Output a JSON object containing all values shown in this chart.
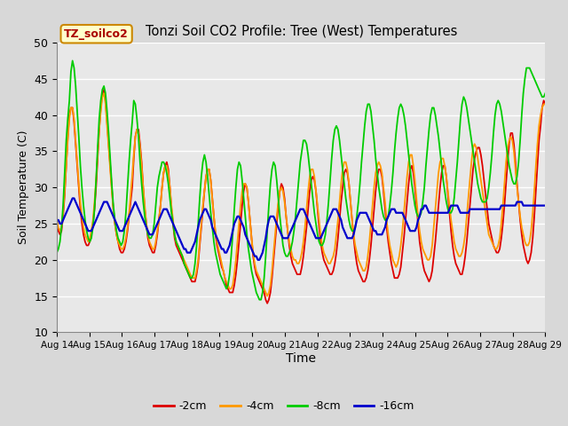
{
  "title": "Tonzi Soil CO2 Profile: Tree (West) Temperatures",
  "xlabel": "Time",
  "ylabel": "Soil Temperature (C)",
  "ylim": [
    10,
    50
  ],
  "yticks": [
    10,
    15,
    20,
    25,
    30,
    35,
    40,
    45,
    50
  ],
  "fig_bg_color": "#d8d8d8",
  "plot_bg_color": "#e8e8e8",
  "grid_color": "white",
  "legend_label": "TZ_soilco2",
  "series_labels": [
    "-2cm",
    "-4cm",
    "-8cm",
    "-16cm"
  ],
  "series_colors": [
    "#dd0000",
    "#ff9900",
    "#00cc00",
    "#0000cc"
  ],
  "series_linewidths": [
    1.3,
    1.3,
    1.3,
    1.6
  ],
  "date_labels": [
    "Aug 14",
    "Aug 15",
    "Aug 16",
    "Aug 17",
    "Aug 18",
    "Aug 19",
    "Aug 20",
    "Aug 21",
    "Aug 22",
    "Aug 23",
    "Aug 24",
    "Aug 25",
    "Aug 26",
    "Aug 27",
    "Aug 28",
    "Aug 29"
  ],
  "depth_2cm": [
    25.0,
    24.0,
    23.5,
    24.0,
    26.0,
    29.0,
    33.0,
    37.0,
    40.0,
    41.0,
    41.0,
    39.0,
    36.0,
    33.0,
    30.0,
    27.0,
    25.0,
    23.5,
    22.5,
    22.0,
    22.0,
    22.5,
    23.5,
    25.0,
    27.0,
    30.0,
    34.0,
    38.0,
    41.0,
    43.0,
    43.5,
    42.0,
    39.0,
    36.0,
    33.0,
    30.0,
    27.0,
    25.0,
    23.5,
    22.5,
    21.5,
    21.0,
    21.0,
    21.5,
    22.5,
    24.0,
    26.0,
    28.0,
    30.0,
    34.0,
    37.0,
    38.0,
    38.0,
    36.0,
    33.5,
    30.0,
    27.0,
    25.0,
    23.0,
    22.0,
    21.5,
    21.0,
    21.0,
    22.0,
    23.5,
    25.5,
    27.5,
    30.0,
    32.0,
    33.0,
    33.5,
    32.5,
    30.0,
    27.0,
    25.0,
    23.0,
    22.0,
    21.5,
    21.0,
    20.5,
    20.0,
    19.5,
    19.0,
    18.5,
    18.0,
    17.5,
    17.0,
    17.0,
    17.0,
    18.0,
    19.5,
    22.0,
    24.5,
    27.0,
    29.5,
    31.5,
    32.5,
    32.5,
    31.0,
    28.5,
    26.0,
    23.5,
    22.0,
    21.0,
    20.0,
    19.0,
    18.5,
    17.5,
    16.5,
    16.0,
    15.5,
    15.5,
    15.5,
    16.5,
    18.0,
    20.0,
    22.5,
    25.0,
    27.5,
    29.5,
    30.5,
    30.0,
    28.0,
    25.5,
    23.0,
    20.5,
    19.0,
    18.0,
    17.5,
    17.0,
    16.5,
    16.0,
    15.5,
    14.5,
    14.0,
    14.5,
    15.5,
    17.5,
    20.0,
    22.5,
    25.0,
    27.5,
    29.5,
    30.5,
    30.0,
    28.5,
    26.0,
    24.0,
    22.0,
    20.5,
    19.5,
    19.0,
    18.5,
    18.0,
    18.0,
    18.0,
    19.0,
    20.5,
    22.5,
    24.5,
    27.0,
    29.5,
    31.0,
    31.5,
    31.0,
    29.5,
    27.0,
    24.5,
    22.5,
    21.0,
    20.0,
    19.5,
    19.0,
    18.5,
    18.0,
    18.0,
    18.5,
    19.5,
    21.0,
    23.0,
    25.5,
    28.0,
    30.0,
    32.0,
    32.5,
    32.0,
    30.5,
    28.0,
    25.5,
    23.0,
    21.0,
    19.5,
    18.5,
    18.0,
    17.5,
    17.0,
    17.0,
    17.5,
    18.5,
    20.0,
    22.0,
    24.5,
    27.0,
    29.5,
    31.5,
    32.5,
    32.5,
    31.5,
    29.5,
    27.0,
    24.5,
    22.5,
    21.0,
    19.5,
    18.5,
    17.5,
    17.5,
    17.5,
    18.0,
    19.0,
    21.0,
    23.0,
    25.5,
    28.0,
    30.5,
    32.5,
    33.0,
    32.0,
    30.0,
    27.5,
    25.0,
    22.5,
    21.0,
    19.5,
    18.5,
    18.0,
    17.5,
    17.0,
    17.5,
    18.5,
    20.5,
    22.5,
    25.0,
    27.5,
    30.0,
    32.0,
    33.0,
    33.0,
    31.5,
    29.0,
    26.5,
    24.0,
    22.0,
    20.5,
    19.5,
    19.0,
    18.5,
    18.0,
    18.0,
    19.0,
    20.5,
    22.5,
    25.0,
    27.5,
    30.0,
    32.5,
    34.0,
    35.0,
    35.5,
    35.5,
    34.5,
    33.0,
    31.0,
    29.0,
    27.0,
    25.0,
    24.0,
    23.0,
    22.0,
    21.5,
    21.0,
    21.0,
    21.5,
    23.0,
    25.0,
    27.5,
    30.5,
    33.5,
    36.0,
    37.5,
    37.5,
    36.0,
    33.5,
    30.5,
    28.0,
    25.5,
    23.5,
    22.0,
    21.0,
    20.0,
    19.5,
    20.0,
    21.0,
    23.0,
    26.0,
    29.5,
    33.0,
    36.5,
    38.5,
    41.0,
    42.0,
    41.5
  ],
  "depth_4cm": [
    25.5,
    24.5,
    24.0,
    24.5,
    26.5,
    29.5,
    33.0,
    36.5,
    39.5,
    41.0,
    41.0,
    39.5,
    36.5,
    33.5,
    30.5,
    28.0,
    26.0,
    24.5,
    23.5,
    23.0,
    22.5,
    23.0,
    24.0,
    25.5,
    28.0,
    31.0,
    34.5,
    38.0,
    40.5,
    42.5,
    43.0,
    41.5,
    38.5,
    35.5,
    32.5,
    29.5,
    27.0,
    25.0,
    23.5,
    22.5,
    22.0,
    21.5,
    21.5,
    22.0,
    23.0,
    24.5,
    26.5,
    29.0,
    31.5,
    34.5,
    37.0,
    38.0,
    37.5,
    35.5,
    33.0,
    30.0,
    27.5,
    25.0,
    23.5,
    22.5,
    22.0,
    21.5,
    21.5,
    22.5,
    24.0,
    25.5,
    27.5,
    30.0,
    32.0,
    33.0,
    33.0,
    32.0,
    30.0,
    27.5,
    25.5,
    23.5,
    22.5,
    22.0,
    21.5,
    21.0,
    20.5,
    20.0,
    19.5,
    19.0,
    18.5,
    18.0,
    17.5,
    17.5,
    17.5,
    18.5,
    20.0,
    22.5,
    25.0,
    27.5,
    29.5,
    31.5,
    32.5,
    32.5,
    31.0,
    28.5,
    26.0,
    24.0,
    22.5,
    21.5,
    20.5,
    19.5,
    18.5,
    17.5,
    17.0,
    16.5,
    16.0,
    16.0,
    16.5,
    18.0,
    20.0,
    22.5,
    25.0,
    27.5,
    29.5,
    30.5,
    30.5,
    30.0,
    28.0,
    25.5,
    23.0,
    21.0,
    19.5,
    18.5,
    18.0,
    17.5,
    17.0,
    16.5,
    16.0,
    15.5,
    15.0,
    15.5,
    16.5,
    18.5,
    21.0,
    23.5,
    26.0,
    28.0,
    29.5,
    30.0,
    29.5,
    28.0,
    26.0,
    24.0,
    22.5,
    21.5,
    20.5,
    20.0,
    20.0,
    19.5,
    19.5,
    20.0,
    21.0,
    22.5,
    24.5,
    27.0,
    29.5,
    31.5,
    32.5,
    32.5,
    31.5,
    29.5,
    27.5,
    25.5,
    23.5,
    22.0,
    21.0,
    20.5,
    20.0,
    19.5,
    19.5,
    20.0,
    20.5,
    21.5,
    23.5,
    25.5,
    28.0,
    30.5,
    32.5,
    33.5,
    33.5,
    32.5,
    30.5,
    28.0,
    25.5,
    23.5,
    22.0,
    21.0,
    20.0,
    19.5,
    19.0,
    18.5,
    18.5,
    19.0,
    20.5,
    22.5,
    25.0,
    27.5,
    30.0,
    32.0,
    33.0,
    33.5,
    33.0,
    32.0,
    30.0,
    28.0,
    25.5,
    23.5,
    22.0,
    21.0,
    20.0,
    19.5,
    19.0,
    19.5,
    20.5,
    22.0,
    24.0,
    26.5,
    29.0,
    31.5,
    33.5,
    34.5,
    34.5,
    33.0,
    31.0,
    28.5,
    26.0,
    24.0,
    22.5,
    21.5,
    21.0,
    20.5,
    20.0,
    20.0,
    20.5,
    22.0,
    24.5,
    27.0,
    29.5,
    32.0,
    33.5,
    34.0,
    34.0,
    33.0,
    31.5,
    29.5,
    27.5,
    25.5,
    24.0,
    22.5,
    21.5,
    21.0,
    20.5,
    20.5,
    21.0,
    22.0,
    23.5,
    26.0,
    28.5,
    31.0,
    33.5,
    35.5,
    36.0,
    35.5,
    34.0,
    32.5,
    31.0,
    29.5,
    28.0,
    26.5,
    25.0,
    23.5,
    23.0,
    22.5,
    22.0,
    21.5,
    21.5,
    22.0,
    23.0,
    25.0,
    27.5,
    30.5,
    33.5,
    35.5,
    36.5,
    37.0,
    36.5,
    35.0,
    32.5,
    30.0,
    28.0,
    26.0,
    24.5,
    23.5,
    22.5,
    22.0,
    22.0,
    22.5,
    24.0,
    26.5,
    29.5,
    33.0,
    36.0,
    38.5,
    40.0,
    41.0,
    41.5,
    41.5
  ],
  "depth_8cm": [
    21.0,
    21.5,
    22.5,
    24.5,
    27.5,
    32.0,
    36.5,
    39.5,
    42.0,
    46.0,
    47.5,
    46.5,
    44.0,
    40.5,
    37.0,
    33.0,
    30.0,
    27.5,
    25.5,
    24.0,
    23.0,
    22.5,
    23.0,
    24.5,
    27.0,
    31.0,
    35.5,
    39.5,
    42.0,
    43.5,
    44.0,
    43.0,
    40.5,
    37.5,
    34.0,
    30.5,
    27.5,
    25.5,
    24.0,
    23.0,
    22.5,
    22.0,
    22.5,
    24.0,
    26.5,
    30.0,
    33.5,
    36.5,
    39.0,
    42.0,
    41.5,
    39.5,
    37.0,
    33.5,
    30.5,
    28.0,
    26.0,
    24.5,
    23.5,
    23.0,
    23.0,
    23.5,
    25.0,
    27.5,
    30.0,
    31.5,
    32.5,
    33.5,
    33.5,
    33.0,
    32.0,
    30.5,
    28.5,
    26.5,
    25.0,
    23.5,
    22.5,
    22.0,
    21.5,
    21.0,
    20.5,
    19.5,
    19.0,
    18.5,
    18.0,
    17.5,
    17.5,
    18.0,
    19.5,
    22.0,
    25.0,
    28.5,
    31.5,
    33.5,
    34.5,
    33.5,
    31.5,
    29.0,
    26.5,
    24.5,
    22.5,
    21.0,
    20.0,
    19.0,
    18.0,
    17.5,
    17.0,
    16.5,
    16.0,
    16.5,
    18.0,
    20.5,
    23.5,
    27.0,
    30.0,
    32.5,
    33.5,
    33.0,
    31.0,
    28.5,
    26.0,
    23.5,
    21.5,
    20.0,
    18.5,
    17.5,
    16.5,
    15.5,
    15.0,
    14.5,
    14.5,
    15.5,
    17.5,
    20.5,
    24.0,
    27.5,
    30.5,
    32.5,
    33.5,
    33.0,
    31.0,
    28.5,
    26.0,
    24.0,
    22.0,
    21.0,
    20.5,
    20.5,
    21.0,
    21.5,
    22.5,
    24.0,
    26.0,
    28.5,
    31.0,
    33.5,
    35.0,
    36.5,
    36.5,
    36.0,
    34.5,
    32.5,
    30.5,
    28.5,
    26.5,
    25.0,
    23.5,
    22.5,
    22.0,
    22.0,
    22.5,
    23.5,
    25.5,
    28.0,
    31.0,
    34.0,
    36.5,
    38.0,
    38.5,
    38.0,
    36.5,
    34.5,
    32.5,
    30.5,
    28.5,
    27.0,
    25.5,
    24.5,
    24.0,
    24.0,
    24.5,
    26.0,
    28.0,
    30.5,
    33.5,
    36.0,
    38.5,
    40.5,
    41.5,
    41.5,
    40.5,
    38.5,
    36.5,
    34.0,
    32.0,
    30.0,
    28.5,
    27.0,
    26.0,
    25.5,
    25.5,
    26.0,
    27.5,
    29.5,
    32.0,
    35.0,
    37.5,
    39.5,
    41.0,
    41.5,
    41.0,
    40.0,
    38.5,
    36.5,
    34.5,
    32.5,
    30.5,
    29.0,
    27.5,
    26.5,
    26.0,
    26.0,
    26.5,
    28.0,
    30.0,
    33.0,
    35.5,
    38.0,
    40.0,
    41.0,
    41.0,
    40.0,
    38.5,
    37.0,
    35.0,
    33.0,
    31.0,
    29.5,
    28.0,
    27.0,
    26.5,
    26.5,
    27.0,
    28.5,
    31.0,
    33.5,
    36.5,
    39.5,
    41.5,
    42.5,
    42.0,
    41.0,
    39.5,
    38.0,
    36.5,
    35.0,
    33.5,
    32.0,
    30.5,
    29.5,
    28.5,
    28.0,
    28.0,
    28.0,
    28.5,
    30.0,
    32.0,
    34.5,
    37.5,
    40.0,
    41.5,
    42.0,
    41.5,
    40.5,
    39.0,
    37.5,
    36.0,
    34.5,
    33.0,
    32.0,
    31.0,
    30.5,
    30.5,
    31.5,
    33.5,
    36.5,
    40.0,
    43.0,
    45.0,
    46.5,
    46.5,
    46.5,
    46.0,
    45.5,
    45.0,
    44.5,
    44.0,
    43.5,
    43.0,
    42.5,
    42.5,
    43.0
  ],
  "depth_16cm": [
    25.5,
    25.5,
    25.0,
    25.0,
    25.5,
    26.0,
    26.5,
    27.0,
    27.5,
    28.0,
    28.5,
    28.5,
    28.0,
    27.5,
    27.0,
    26.5,
    26.0,
    25.5,
    25.0,
    24.5,
    24.0,
    24.0,
    24.0,
    24.5,
    25.0,
    25.5,
    26.0,
    26.5,
    27.0,
    27.5,
    28.0,
    28.0,
    28.0,
    27.5,
    27.0,
    26.5,
    26.0,
    25.5,
    25.0,
    24.5,
    24.0,
    24.0,
    24.0,
    24.5,
    25.0,
    25.5,
    26.0,
    26.5,
    27.0,
    27.5,
    28.0,
    27.5,
    27.0,
    26.5,
    26.0,
    25.5,
    25.0,
    24.5,
    24.0,
    23.5,
    23.5,
    23.5,
    24.0,
    24.5,
    25.0,
    25.5,
    26.0,
    26.5,
    27.0,
    27.0,
    27.0,
    26.5,
    26.0,
    25.5,
    25.0,
    24.5,
    24.0,
    23.5,
    23.0,
    22.5,
    22.0,
    21.5,
    21.5,
    21.0,
    21.0,
    21.0,
    21.5,
    22.0,
    22.5,
    23.5,
    24.5,
    25.5,
    26.0,
    26.5,
    27.0,
    27.0,
    26.5,
    26.0,
    25.5,
    24.5,
    24.0,
    23.5,
    23.0,
    22.5,
    22.0,
    21.5,
    21.5,
    21.0,
    21.0,
    21.5,
    22.0,
    23.0,
    24.0,
    25.0,
    25.5,
    26.0,
    26.0,
    25.5,
    25.0,
    24.5,
    23.5,
    23.0,
    22.5,
    22.0,
    21.5,
    21.0,
    20.5,
    20.5,
    20.0,
    20.0,
    20.5,
    21.0,
    22.0,
    23.0,
    24.5,
    25.5,
    26.0,
    26.0,
    26.0,
    25.5,
    25.0,
    24.5,
    24.0,
    23.5,
    23.0,
    23.0,
    23.0,
    23.0,
    23.5,
    24.0,
    24.5,
    25.0,
    25.5,
    26.0,
    26.5,
    27.0,
    27.0,
    27.0,
    26.5,
    26.0,
    25.5,
    25.0,
    24.5,
    24.0,
    23.5,
    23.0,
    23.0,
    23.0,
    23.0,
    23.5,
    24.0,
    24.5,
    25.0,
    25.5,
    26.0,
    26.5,
    27.0,
    27.0,
    27.0,
    26.5,
    26.0,
    25.5,
    24.5,
    24.0,
    23.5,
    23.0,
    23.0,
    23.0,
    23.0,
    23.5,
    24.5,
    25.5,
    26.0,
    26.5,
    26.5,
    26.5,
    26.5,
    26.5,
    26.0,
    25.5,
    25.0,
    24.5,
    24.0,
    24.0,
    23.5,
    23.5,
    23.5,
    23.5,
    24.0,
    24.5,
    25.5,
    26.0,
    26.5,
    27.0,
    27.0,
    27.0,
    26.5,
    26.5,
    26.5,
    26.5,
    26.5,
    26.0,
    25.5,
    25.0,
    24.5,
    24.0,
    24.0,
    24.0,
    24.0,
    24.5,
    25.5,
    26.0,
    27.0,
    27.0,
    27.5,
    27.5,
    27.0,
    26.5,
    26.5,
    26.5,
    26.5,
    26.5,
    26.5,
    26.5,
    26.5,
    26.5,
    26.5,
    26.5,
    26.5,
    26.5,
    27.0,
    27.5,
    27.5,
    27.5,
    27.5,
    27.5,
    27.0,
    26.5,
    26.5,
    26.5,
    26.5,
    26.5,
    26.5,
    27.0,
    27.0,
    27.0,
    27.0,
    27.0,
    27.0,
    27.0,
    27.0,
    27.0,
    27.0,
    27.0,
    27.0,
    27.0,
    27.0,
    27.0,
    27.0,
    27.0,
    27.0,
    27.0,
    27.0,
    27.5,
    27.5,
    27.5,
    27.5,
    27.5,
    27.5,
    27.5,
    27.5,
    27.5,
    27.5,
    28.0,
    28.0,
    28.0,
    28.0,
    27.5,
    27.5,
    27.5,
    27.5,
    27.5,
    27.5,
    27.5,
    27.5,
    27.5,
    27.5,
    27.5,
    27.5,
    27.5,
    27.5,
    27.5
  ]
}
